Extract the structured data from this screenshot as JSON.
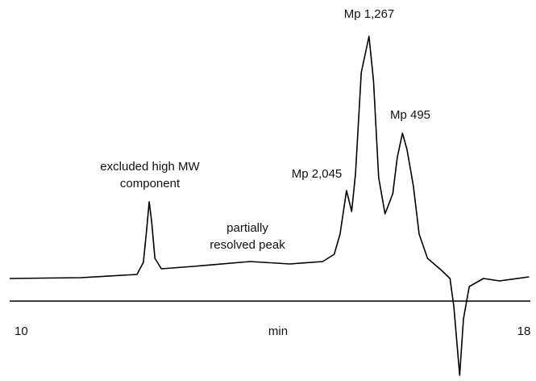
{
  "chart_data": {
    "type": "line",
    "x": [
      10,
      11.1,
      11.98,
      12.08,
      12.13,
      12.17,
      12.21,
      12.26,
      12.36,
      12.86,
      13.74,
      14.36,
      14.87,
      15.05,
      15.14,
      15.24,
      15.32,
      15.38,
      15.47,
      15.59,
      15.66,
      15.74,
      15.84,
      15.96,
      16.03,
      16.11,
      16.18,
      16.28,
      16.37,
      16.5,
      16.72,
      16.85,
      16.91,
      17.0,
      17.06,
      17.15,
      17.37,
      17.62,
      18.08
    ],
    "values": [
      0,
      1,
      5,
      20,
      60,
      95,
      70,
      25,
      12,
      15,
      21,
      18,
      21,
      30,
      55,
      109,
      83,
      130,
      255,
      300,
      245,
      125,
      80,
      105,
      150,
      180,
      160,
      115,
      55,
      25,
      10,
      0,
      -35,
      -120,
      -50,
      -10,
      0,
      -3,
      2
    ],
    "color": "#000000",
    "xlim": [
      10,
      18
    ],
    "xticks": [
      10,
      18
    ],
    "xlabel": "min",
    "annotations": [
      {
        "lines": [
          "excluded high MW",
          "component"
        ]
      },
      {
        "lines": [
          "partially",
          "resolved peak"
        ]
      },
      {
        "lines": [
          "Mp 2,045"
        ]
      },
      {
        "lines": [
          "Mp 1,267"
        ]
      },
      {
        "lines": [
          "Mp 495"
        ]
      }
    ]
  }
}
